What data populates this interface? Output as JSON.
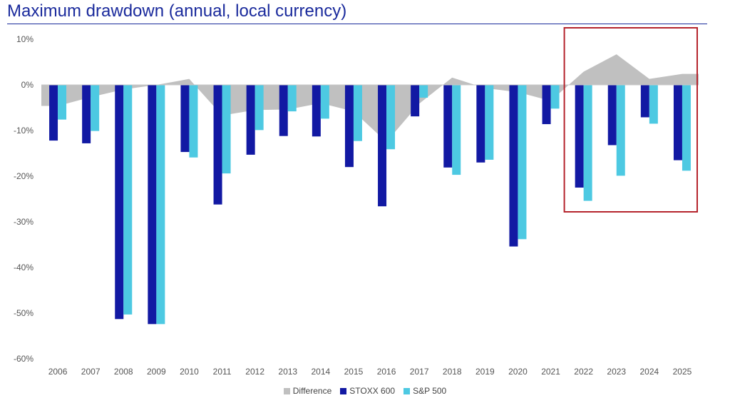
{
  "chart_data": {
    "type": "bar",
    "title": "Maximum drawdown (annual, local currency)",
    "categories": [
      "2006",
      "2007",
      "2008",
      "2009",
      "2010",
      "2011",
      "2012",
      "2013",
      "2014",
      "2015",
      "2016",
      "2017",
      "2018",
      "2019",
      "2020",
      "2021",
      "2022",
      "2023",
      "2024",
      "2025"
    ],
    "series": [
      {
        "name": "Difference",
        "kind": "area",
        "color": "#c0c0c0",
        "values": [
          -4.6,
          -2.7,
          -1.0,
          0.0,
          1.3,
          -6.7,
          -5.5,
          -5.4,
          -4.0,
          -5.8,
          -12.5,
          -4.1,
          1.6,
          -0.7,
          -1.6,
          -3.5,
          2.9,
          6.7,
          1.3,
          2.4
        ]
      },
      {
        "name": "STOXX 600",
        "kind": "bar",
        "color": "#1219a3",
        "values": [
          -12.2,
          -12.8,
          -51.3,
          -52.4,
          -14.7,
          -26.2,
          -15.3,
          -11.2,
          -11.3,
          -18.0,
          -26.6,
          -6.9,
          -18.1,
          -17.0,
          -35.4,
          -8.6,
          -22.5,
          -13.2,
          -7.1,
          -16.5
        ]
      },
      {
        "name": "S&P 500",
        "kind": "bar",
        "color": "#4dc9e2",
        "values": [
          -7.6,
          -10.1,
          -50.3,
          -52.4,
          -15.9,
          -19.4,
          -9.9,
          -5.8,
          -7.4,
          -12.3,
          -14.1,
          -2.8,
          -19.7,
          -16.4,
          -33.8,
          -5.2,
          -25.4,
          -19.9,
          -8.5,
          -18.8
        ]
      }
    ],
    "yticks": [
      "10%",
      "0%",
      "-10%",
      "-20%",
      "-30%",
      "-40%",
      "-50%",
      "-60%"
    ],
    "ylim": [
      -60,
      10
    ],
    "grid": false,
    "legend_position": "bottom",
    "highlight": {
      "from": "2022",
      "to": "2025",
      "color": "#b5242c"
    }
  }
}
